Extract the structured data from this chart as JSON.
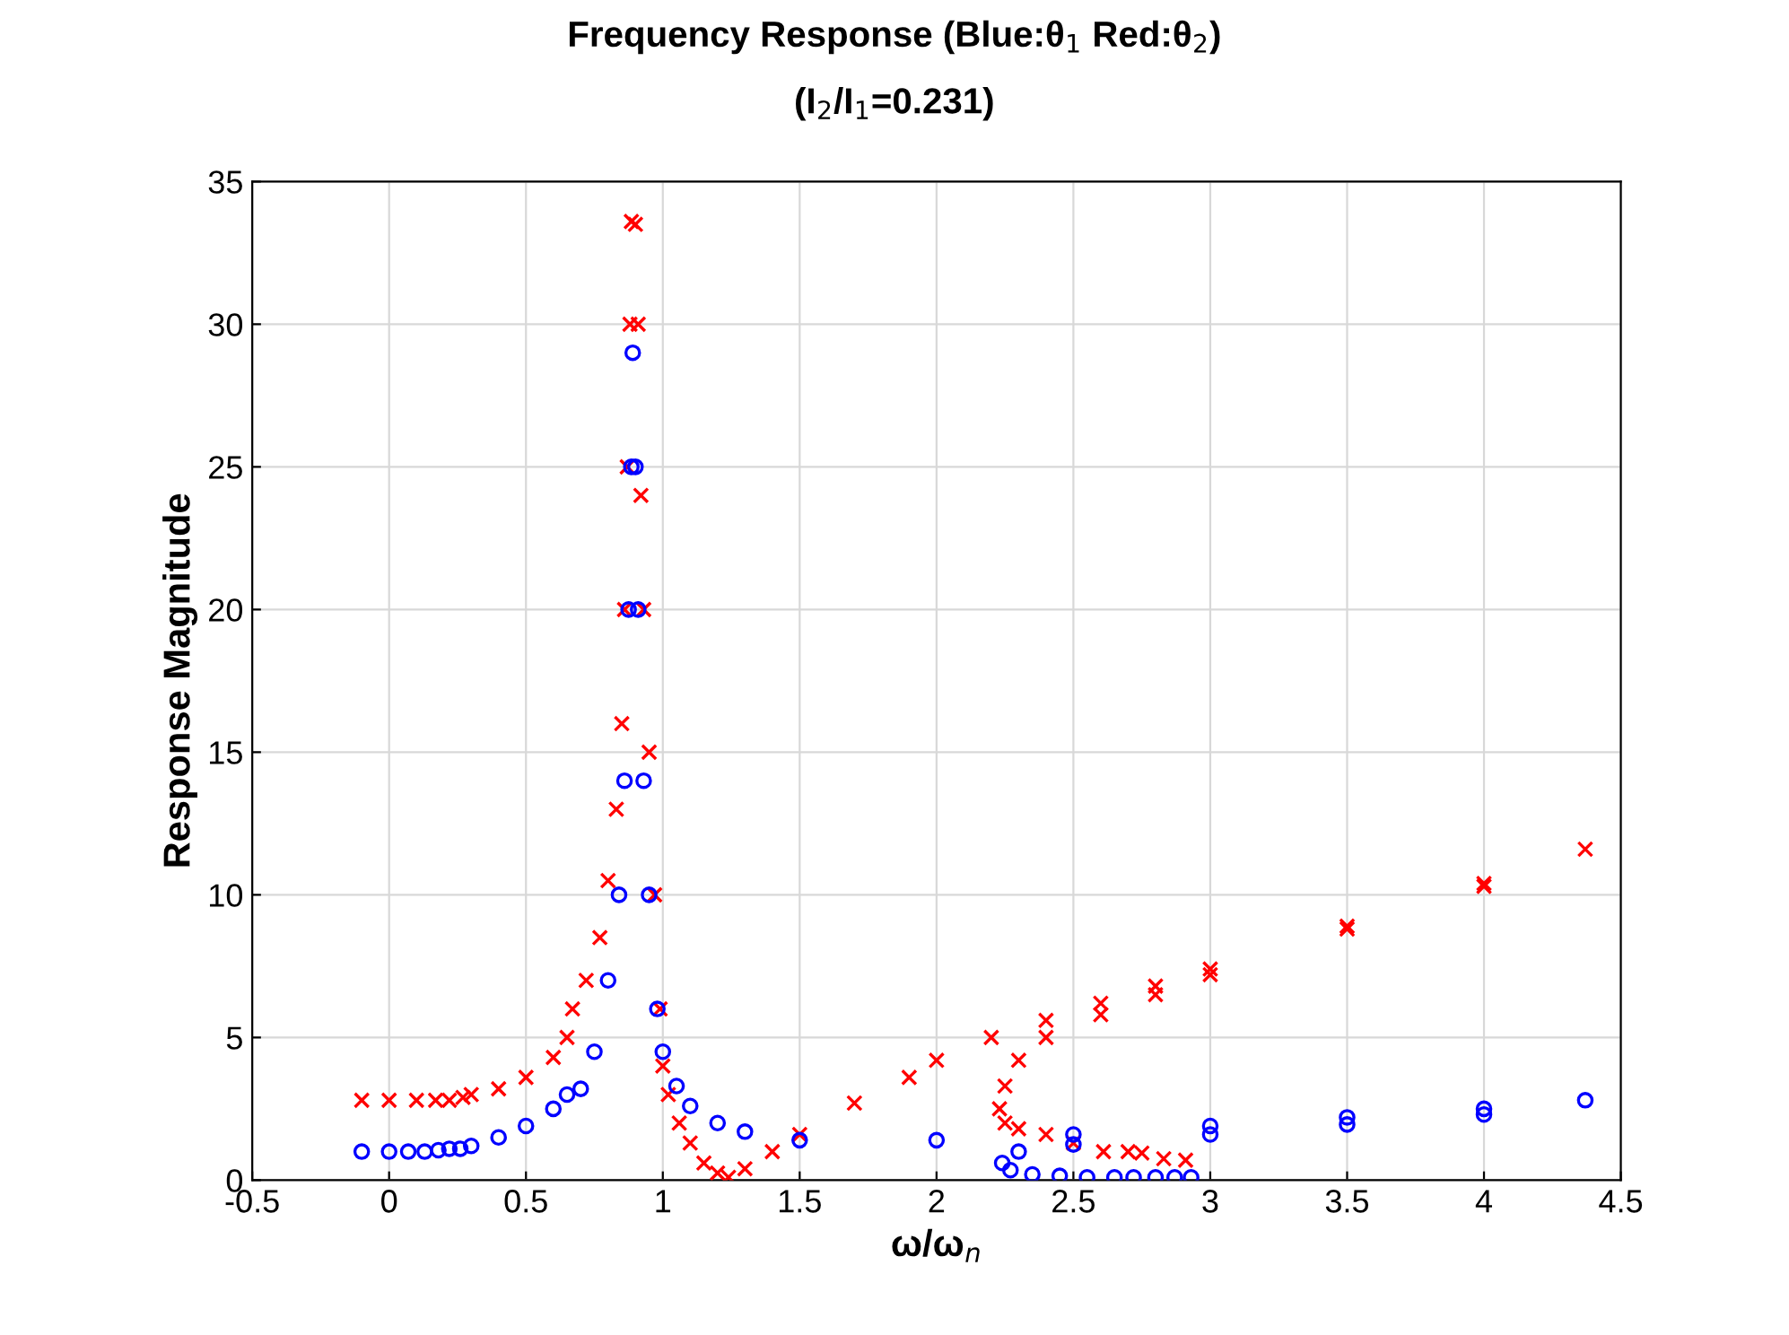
{
  "chart_data": {
    "type": "scatter",
    "title": "Frequency Response (Blue:θ$_{1}$ Red:θ$_{2}$)",
    "subtitle": "(I$_{2}$/I$_{1}$=0.231)",
    "xlabel": "ω/ω$_{n}$",
    "ylabel": "Response Magnitude",
    "xlim": [
      -0.5,
      4.5
    ],
    "xticks": [
      -0.5,
      0,
      0.5,
      1,
      1.5,
      2,
      2.5,
      3,
      3.5,
      4,
      4.5
    ],
    "ylim": [
      0,
      35
    ],
    "yticks": [
      0,
      5,
      10,
      15,
      20,
      25,
      30,
      35
    ],
    "grid": true,
    "legend": false,
    "series": [
      {
        "color": "#ff0000",
        "marker": "cross",
        "x": [
          -0.1,
          0,
          0.1,
          0.17,
          0.22,
          0.27,
          0.3,
          0.4,
          0.5,
          0.6,
          0.65,
          0.67,
          0.72,
          0.77,
          0.8,
          0.83,
          0.85,
          0.86,
          0.87,
          0.88,
          0.885,
          0.9,
          0.91,
          0.92,
          0.93,
          0.95,
          0.97,
          0.99,
          1.0,
          1.02,
          1.06,
          1.1,
          1.15,
          1.2,
          1.24,
          1.3,
          1.4,
          1.5,
          1.7,
          1.9,
          2.0,
          2.2,
          2.4,
          2.6,
          2.8,
          3.0,
          3.5,
          4.0,
          4.37,
          4.0,
          3.5,
          3.0,
          2.8,
          2.6,
          2.4,
          2.3,
          2.25,
          2.23,
          2.25,
          2.3,
          2.4,
          2.5,
          2.61,
          2.7,
          2.75,
          2.83,
          2.91
        ],
        "values": [
          2.8,
          2.8,
          2.8,
          2.8,
          2.8,
          2.9,
          3.0,
          3.2,
          3.6,
          4.3,
          5.0,
          6.0,
          7.0,
          8.5,
          10.5,
          13,
          16,
          20,
          25,
          30,
          33.6,
          33.5,
          30,
          24,
          20,
          15,
          10,
          6,
          4,
          3,
          2,
          1.3,
          0.6,
          0.25,
          0.1,
          0.4,
          1.0,
          1.6,
          2.7,
          3.6,
          4.2,
          5.0,
          5.6,
          6.2,
          6.8,
          7.4,
          8.9,
          10.4,
          11.6,
          10.3,
          8.8,
          7.2,
          6.5,
          5.8,
          5.0,
          4.2,
          3.3,
          2.5,
          2.0,
          1.8,
          1.6,
          1.3,
          1.0,
          1.0,
          0.95,
          0.75,
          0.7
        ]
      },
      {
        "color": "#0000ff",
        "marker": "circle",
        "x": [
          -0.1,
          0,
          0.07,
          0.13,
          0.18,
          0.22,
          0.26,
          0.3,
          0.4,
          0.5,
          0.6,
          0.65,
          0.7,
          0.75,
          0.8,
          0.84,
          0.86,
          0.875,
          0.885,
          0.89,
          0.9,
          0.91,
          0.93,
          0.95,
          0.98,
          1.0,
          1.05,
          1.1,
          1.2,
          1.3,
          1.5,
          2.0,
          2.5,
          3.0,
          3.5,
          4.0,
          4.37,
          4.0,
          3.5,
          3.0,
          2.5,
          2.3,
          2.24,
          2.27,
          2.35,
          2.45,
          2.55,
          2.65,
          2.72,
          2.8,
          2.87,
          2.93
        ],
        "values": [
          1.0,
          1.0,
          1.0,
          1.0,
          1.05,
          1.1,
          1.1,
          1.2,
          1.5,
          1.9,
          2.5,
          3.0,
          3.2,
          4.5,
          7,
          10,
          14,
          20,
          25,
          29,
          25,
          20,
          14,
          10,
          6,
          4.5,
          3.3,
          2.6,
          2.0,
          1.7,
          1.4,
          1.4,
          1.6,
          1.9,
          2.2,
          2.5,
          2.8,
          2.3,
          1.95,
          1.6,
          1.25,
          1.0,
          0.6,
          0.35,
          0.2,
          0.15,
          0.1,
          0.1,
          0.1,
          0.1,
          0.1,
          0.1
        ]
      }
    ]
  }
}
